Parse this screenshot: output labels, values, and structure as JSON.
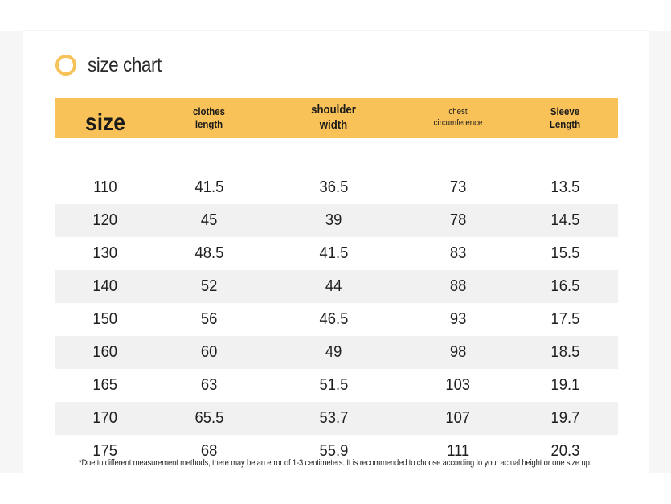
{
  "title": "size chart",
  "columns": [
    {
      "line1": "size",
      "line2": ""
    },
    {
      "line1": "clothes",
      "line2": "length"
    },
    {
      "line1": "shoulder",
      "line2": "width"
    },
    {
      "line1": "chest",
      "line2": "circumference"
    },
    {
      "line1": "Sleeve",
      "line2": "Length"
    }
  ],
  "rows": [
    [
      "110",
      "41.5",
      "36.5",
      "73",
      "13.5"
    ],
    [
      "120",
      "45",
      "39",
      "78",
      "14.5"
    ],
    [
      "130",
      "48.5",
      "41.5",
      "83",
      "15.5"
    ],
    [
      "140",
      "52",
      "44",
      "88",
      "16.5"
    ],
    [
      "150",
      "56",
      "46.5",
      "93",
      "17.5"
    ],
    [
      "160",
      "60",
      "49",
      "98",
      "18.5"
    ],
    [
      "165",
      "63",
      "51.5",
      "103",
      "19.1"
    ],
    [
      "170",
      "65.5",
      "53.7",
      "107",
      "19.7"
    ],
    [
      "175",
      "68",
      "55.9",
      "111",
      "20.3"
    ]
  ],
  "note": "*Due to different measurement methods, there may be an error of 1-3 centimeters. It is recommended to choose according to your actual height or one size up.",
  "colors": {
    "accent": "#f8c259",
    "ring": "#f6c25a",
    "stripe": "#f1f1f1"
  },
  "icons": {
    "title_marker": "ring-icon"
  }
}
